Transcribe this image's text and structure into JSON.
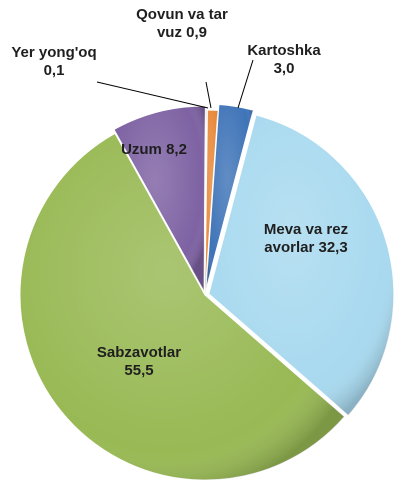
{
  "chart_data": {
    "type": "pie",
    "categories": [
      "Kartoshka",
      "Meva va rezavorlar",
      "Sabzavotlar",
      "Uzum",
      "Yer yong'oq",
      "Qovun va tarvuz"
    ],
    "values": [
      3.0,
      32.3,
      55.5,
      8.2,
      0.1,
      0.9
    ],
    "value_labels": [
      "3,0",
      "32,3",
      "55,5",
      "8,2",
      "0,1",
      "0,9"
    ],
    "colors": [
      "#3f74b8",
      "#a8d9ef",
      "#98b954",
      "#7e62a3",
      "#a04440",
      "#e8893a"
    ]
  }
}
